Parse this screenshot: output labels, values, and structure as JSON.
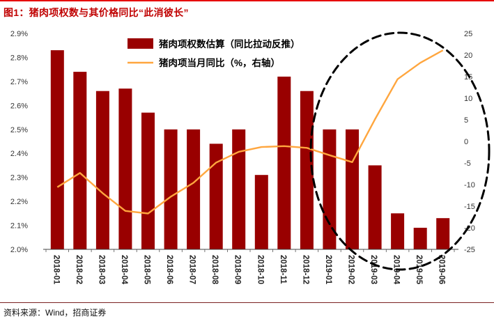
{
  "header": {
    "title": "图1：猪肉项权数与其价格同比“此消彼长”"
  },
  "footer": {
    "source": "资料来源：Wind，招商证券"
  },
  "colors": {
    "title": "#c00000",
    "top_rule": "#e60000",
    "bar": "#990000",
    "line": "#ffa63e",
    "axis_text": "#333333",
    "annotation": "#000000"
  },
  "chart_data": {
    "type": "bar",
    "subtype": "bar+line dual axis",
    "title": "猪肉项权数与其价格同比“此消彼长”",
    "grid": false,
    "legend_position": "top-center",
    "categories": [
      "2018-01",
      "2018-02",
      "2018-03",
      "2018-04",
      "2018-05",
      "2018-06",
      "2018-07",
      "2018-08",
      "2018-09",
      "2018-10",
      "2018-11",
      "2018-12",
      "2019-01",
      "2019-02",
      "2019-03",
      "2019-04",
      "2019-05",
      "2019-06"
    ],
    "series": [
      {
        "name": "猪肉项权数估算（同比拉动反推）",
        "type": "bar",
        "axis": "left",
        "color": "#990000",
        "values": [
          2.83,
          2.74,
          2.66,
          2.67,
          2.57,
          2.5,
          2.5,
          2.44,
          2.5,
          2.31,
          2.72,
          2.66,
          2.5,
          2.5,
          2.35,
          2.15,
          2.09,
          2.13
        ]
      },
      {
        "name": "猪肉项当月同比（%，右轴）",
        "type": "line",
        "axis": "right",
        "color": "#ffa63e",
        "values": [
          -10.6,
          -7.3,
          -12.0,
          -16.1,
          -16.7,
          -12.8,
          -9.6,
          -4.9,
          -2.4,
          -1.3,
          -1.1,
          -1.5,
          -3.2,
          -4.8,
          5.1,
          14.4,
          18.2,
          21.1
        ]
      }
    ],
    "left_axis": {
      "min": 2.0,
      "max": 2.9,
      "ticks": [
        "2.0%",
        "2.1%",
        "2.2%",
        "2.3%",
        "2.4%",
        "2.5%",
        "2.6%",
        "2.7%",
        "2.8%",
        "2.9%"
      ]
    },
    "right_axis": {
      "min": -25,
      "max": 25,
      "ticks": [
        25,
        20,
        15,
        10,
        5,
        0,
        -5,
        -10,
        -15,
        -20,
        -25
      ]
    },
    "annotation": {
      "type": "dashed-ellipse",
      "highlights": "2019-01 至 2019-06 区域"
    }
  }
}
